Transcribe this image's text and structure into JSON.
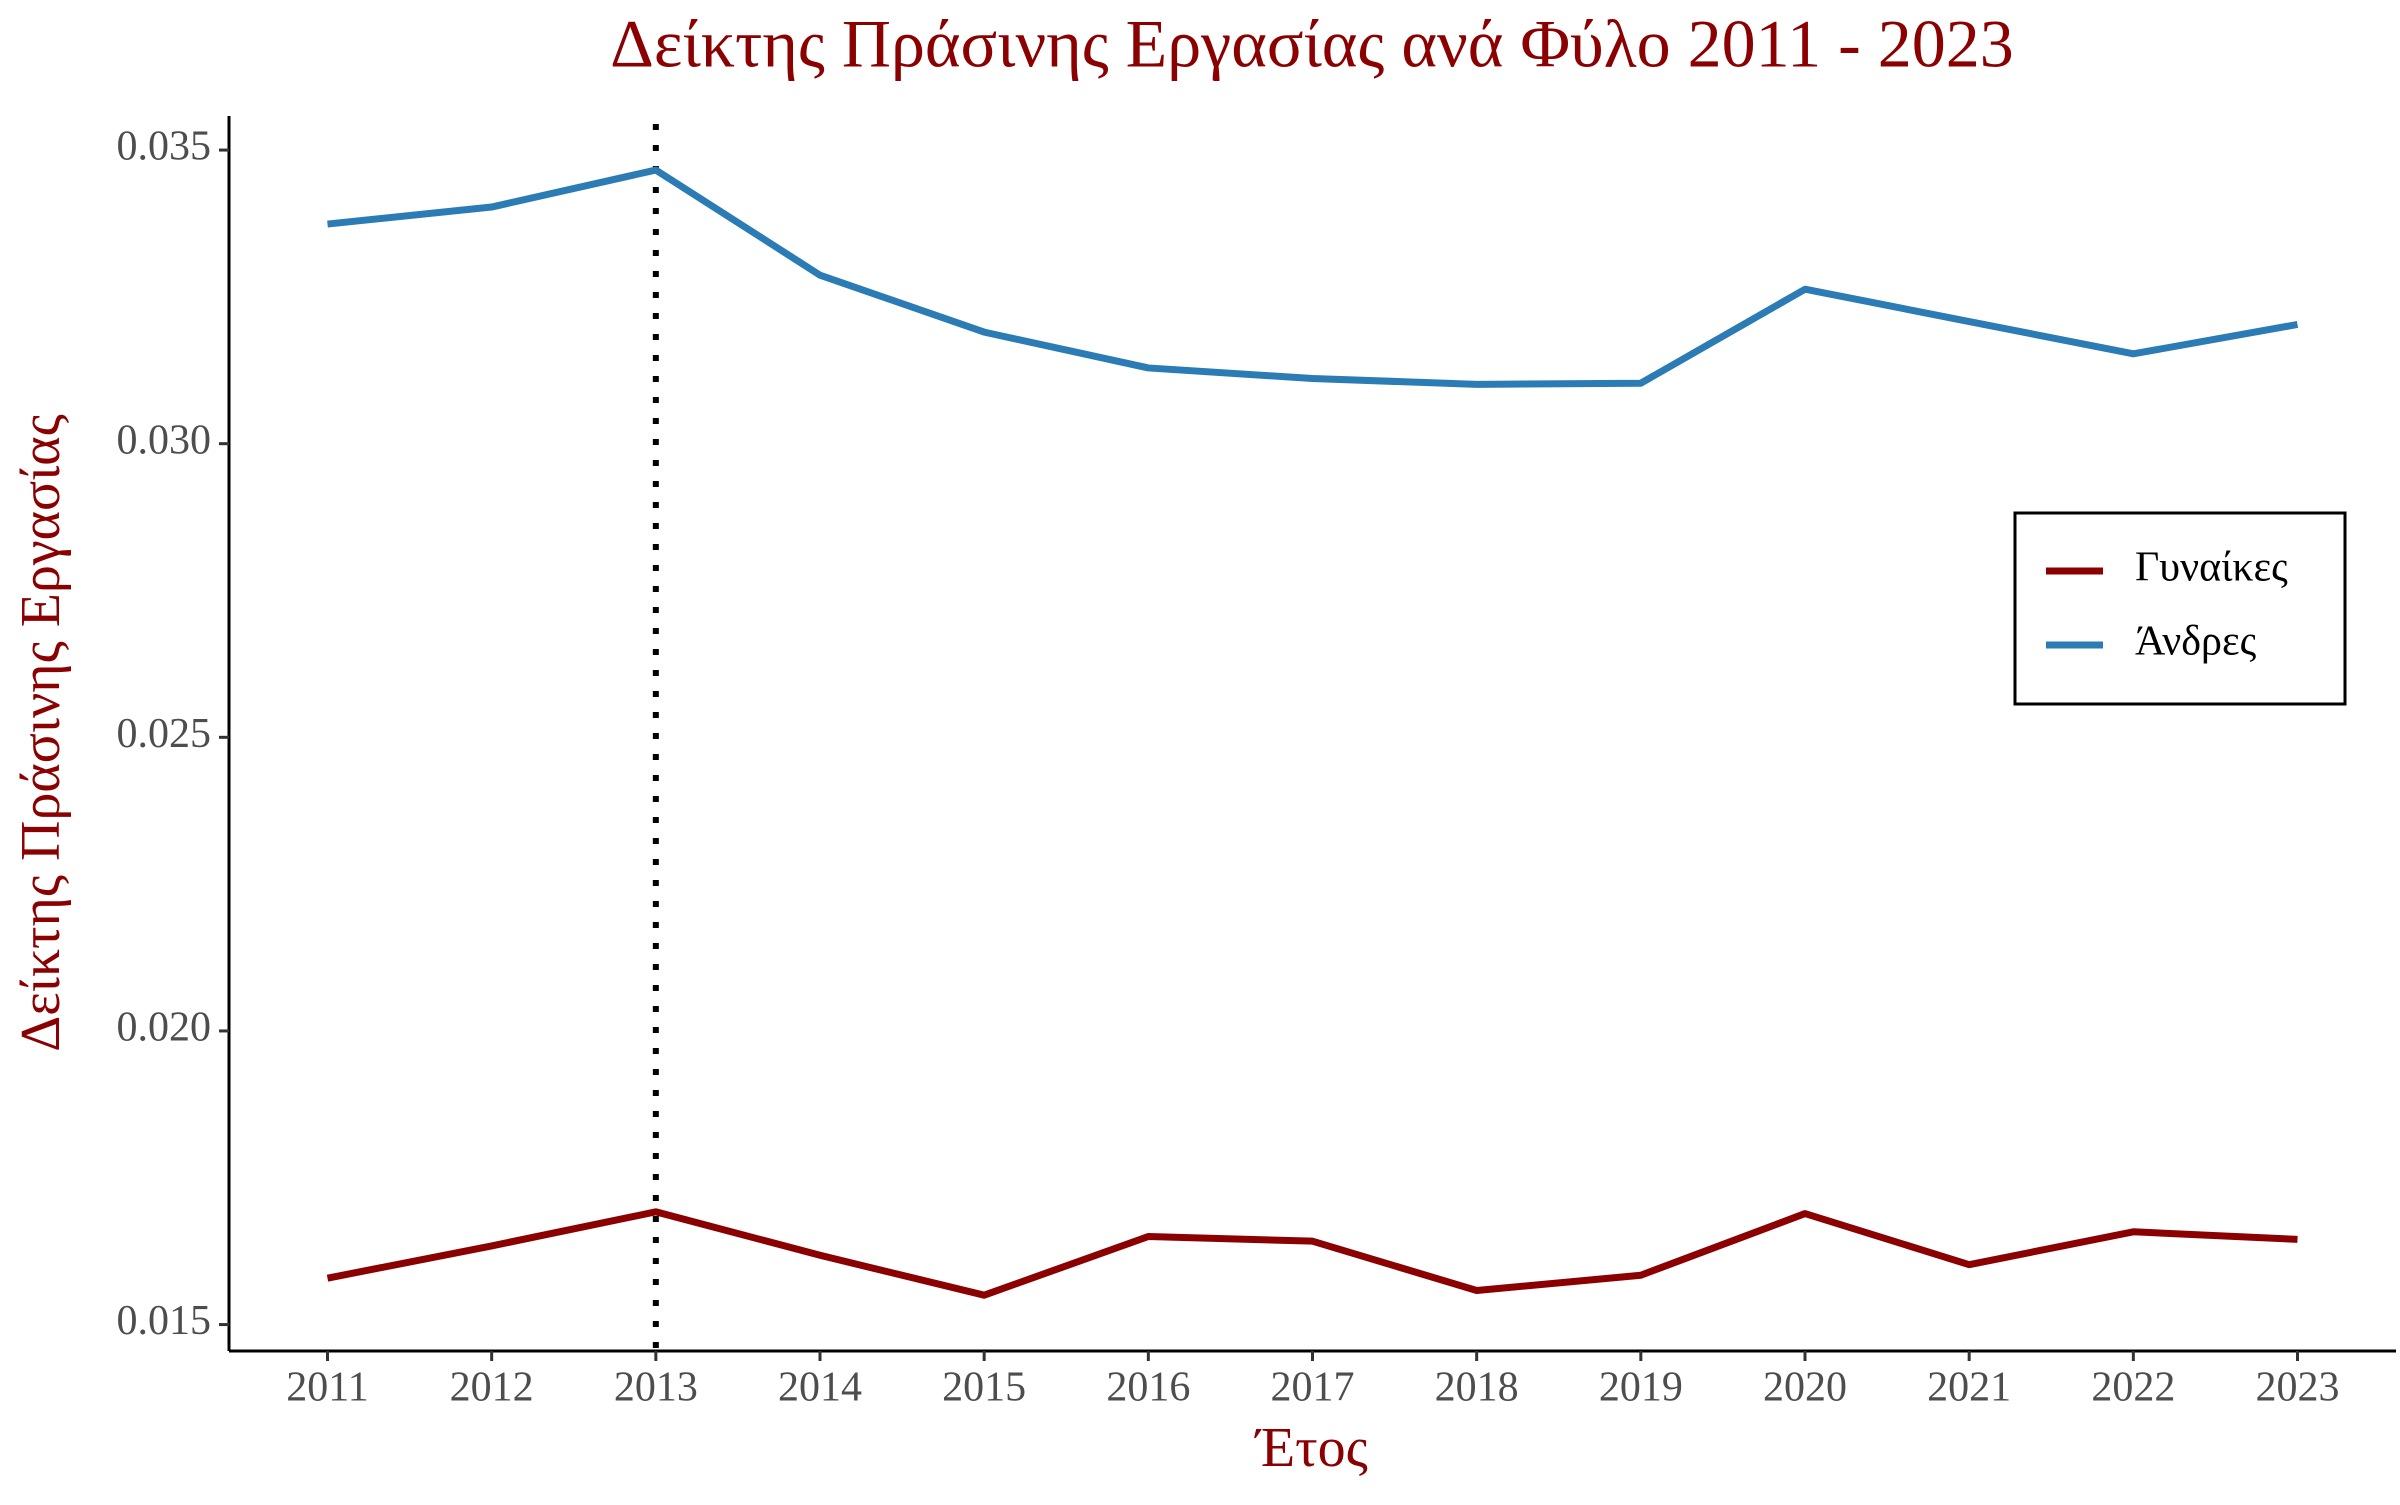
{
  "chart_data": {
    "type": "line",
    "title": "Δείκτης Πράσινης Εργασίας ανά Φύλο 2011 - 2023",
    "x_label": "Έτος",
    "y_label": "Δείκτης Πράσινης Εργασίας",
    "x": [
      2011,
      2012,
      2013,
      2014,
      2015,
      2016,
      2017,
      2018,
      2019,
      2020,
      2021,
      2022,
      2023
    ],
    "series": [
      {
        "name": "Γυναίκες",
        "color": "#8b0000",
        "values": [
          0.01579,
          0.01634,
          0.01692,
          0.01618,
          0.0155,
          0.0165,
          0.01642,
          0.01558,
          0.01584,
          0.01689,
          0.01602,
          0.01658,
          0.01645
        ]
      },
      {
        "name": "Άνδρες",
        "color": "#2b7bb5",
        "values": [
          0.03374,
          0.03403,
          0.03466,
          0.03287,
          0.0319,
          0.03129,
          0.03111,
          0.03101,
          0.03103,
          0.03263,
          0.03208,
          0.03153,
          0.03203
        ]
      }
    ],
    "vline": 2013,
    "xlim": [
      2010.4,
      2023.6
    ],
    "xticks": [
      2011,
      2012,
      2013,
      2014,
      2015,
      2016,
      2017,
      2018,
      2019,
      2020,
      2021,
      2022,
      2023
    ],
    "ylim": [
      0.01455,
      0.03558
    ],
    "yticks": [
      0.015,
      {
        "value": 0.02,
        "label": "0.020"
      },
      0.025,
      {
        "value": 0.03,
        "label": "0.030"
      },
      0.035
    ],
    "legend": "right"
  }
}
